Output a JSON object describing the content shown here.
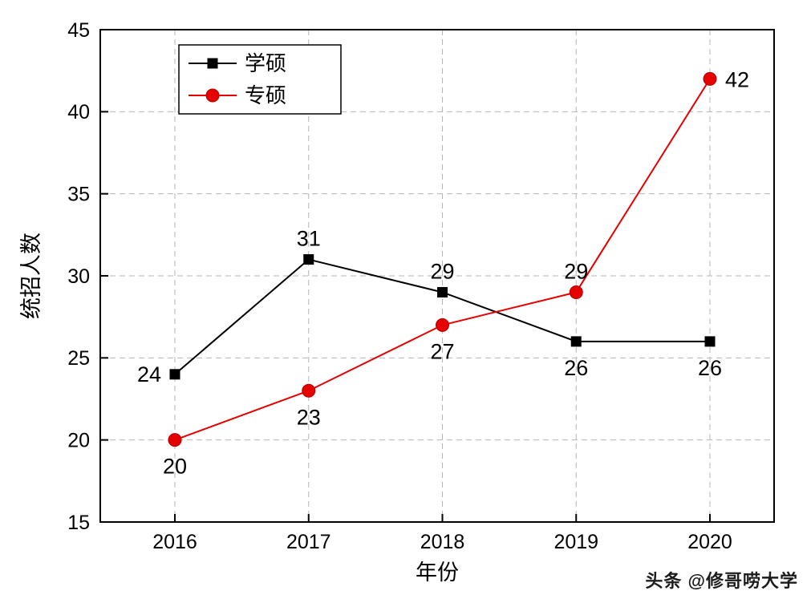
{
  "chart_data": {
    "type": "line",
    "categories": [
      "2016",
      "2017",
      "2018",
      "2019",
      "2020"
    ],
    "series": [
      {
        "name": "学硕",
        "values": [
          24,
          31,
          29,
          26,
          26
        ],
        "color": "#000000",
        "marker": "square",
        "label_placements": [
          "left",
          "above",
          "above",
          "below",
          "below"
        ]
      },
      {
        "name": "专硕",
        "values": [
          20,
          23,
          27,
          29,
          42
        ],
        "color": "#e60000",
        "marker": "circle",
        "label_placements": [
          "below",
          "below",
          "below",
          "above",
          "right"
        ]
      }
    ],
    "title": "",
    "xlabel": "年份",
    "ylabel": "统招人数",
    "ylim": [
      15,
      45
    ],
    "ytick_step": 5,
    "grid": "dashed",
    "legend_position": "top-left"
  },
  "watermark": "头条 @修哥唠大学",
  "colors": {
    "grid": "#b5b5b5",
    "axis": "#000000",
    "background": "#ffffff"
  }
}
